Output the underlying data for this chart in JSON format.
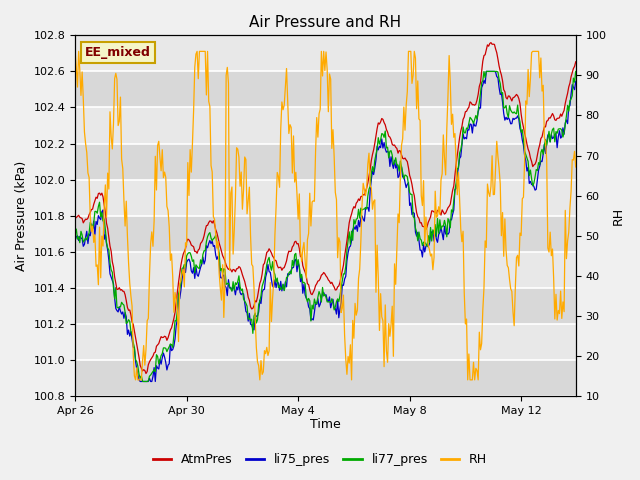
{
  "title": "Air Pressure and RH",
  "ylabel_left": "Air Pressure (kPa)",
  "ylabel_right": "RH",
  "xlabel": "Time",
  "ylim_left": [
    100.8,
    102.8
  ],
  "ylim_right": [
    10,
    100
  ],
  "background_color": "#f0f0f0",
  "plot_bg_color": "#e8e8e8",
  "label_box_text": "EE_mixed",
  "label_box_facecolor": "#f5f5c8",
  "label_box_edgecolor": "#c8a000",
  "label_box_textcolor": "#800000",
  "series_colors": {
    "AtmPres": "#cc0000",
    "li75_pres": "#0000cc",
    "li77_pres": "#00aa00",
    "RH": "#ffaa00"
  },
  "legend_labels": [
    "AtmPres",
    "li75_pres",
    "li77_pres",
    "RH"
  ],
  "xtick_labels": [
    "Apr 26",
    "Apr 30",
    "May 4",
    "May 8",
    "May 12"
  ],
  "xtick_positions": [
    0,
    96,
    192,
    288,
    384
  ],
  "n_points": 432
}
